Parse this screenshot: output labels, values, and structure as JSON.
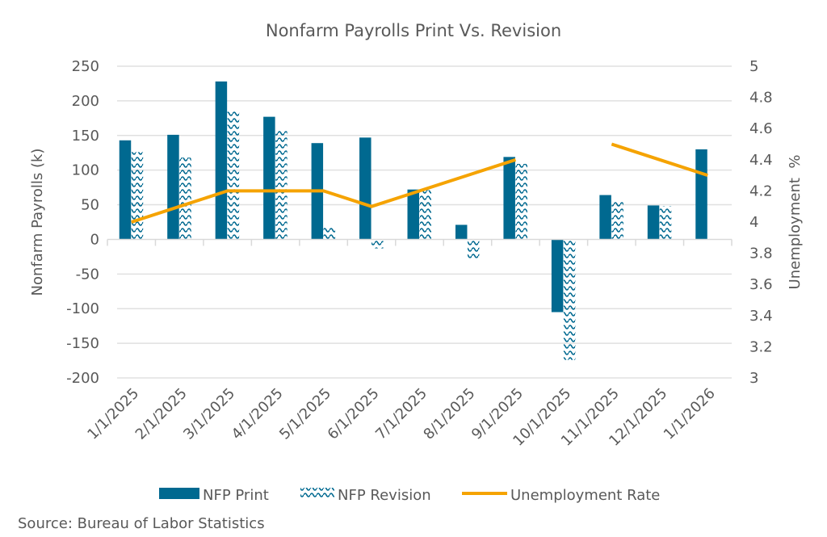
{
  "chart_data": {
    "type": "bar",
    "title": "Nonfarm Payrolls Print Vs. Revision",
    "categories": [
      "1/1/2025",
      "2/1/2025",
      "3/1/2025",
      "4/1/2025",
      "5/1/2025",
      "6/1/2025",
      "7/1/2025",
      "8/1/2025",
      "9/1/2025",
      "10/1/2025",
      "11/1/2025",
      "12/1/2025",
      "1/1/2026"
    ],
    "series": [
      {
        "name": "NFP Print",
        "type": "bar",
        "axis": "left",
        "color": "#006990",
        "values": [
          143,
          151,
          228,
          177,
          139,
          147,
          72,
          21,
          119,
          -105,
          64,
          49,
          130
        ]
      },
      {
        "name": "NFP Revision",
        "type": "bar-pattern",
        "axis": "left",
        "color": "#006990",
        "values": [
          126,
          118,
          185,
          159,
          19,
          -13,
          71,
          -27,
          109,
          -174,
          56,
          48,
          null
        ]
      },
      {
        "name": "Unemployment Rate",
        "type": "line",
        "axis": "right",
        "color": "#F5A300",
        "values": [
          4.0,
          4.1,
          4.2,
          4.2,
          4.2,
          4.1,
          4.2,
          4.3,
          4.4,
          null,
          4.5,
          4.4,
          4.3
        ]
      }
    ],
    "ylabel": "Nonfarm Payrolls (k)",
    "ylim": [
      -200,
      250
    ],
    "yticks": [
      "250",
      "200",
      "150",
      "100",
      "50",
      "0",
      "-50",
      "-100",
      "-150",
      "-200"
    ],
    "y2label": "Unemployment  %",
    "y2lim": [
      3,
      5
    ],
    "y2ticks": [
      "5",
      "4.8",
      "4.6",
      "4.4",
      "4.2",
      "4",
      "3.8",
      "3.6",
      "3.4",
      "3.2",
      "3"
    ],
    "grid": true,
    "legend_position": "bottom",
    "legend": [
      "NFP Print",
      "NFP Revision",
      "Unemployment Rate"
    ],
    "source": "Source: Bureau of Labor Statistics",
    "gridline_color": "#E0E0E0",
    "text_color": "#595959"
  }
}
